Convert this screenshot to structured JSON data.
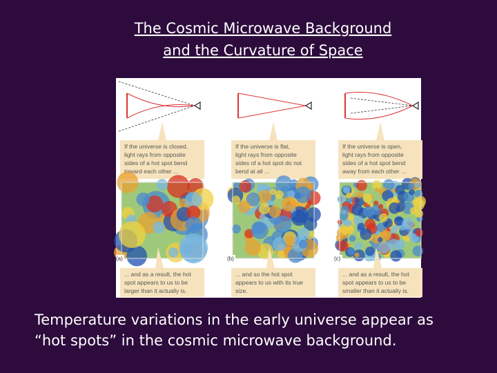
{
  "title": {
    "lines": [
      "The Cosmic Microwave Background",
      "and the Curvature of Space"
    ]
  },
  "figure": {
    "panels": [
      {
        "label": "(a)",
        "top_caption": [
          "If the universe is closed,",
          "light rays from opposite",
          "sides of a hot spot bend",
          "toward each other ..."
        ],
        "bottom_caption": [
          "... and as a result, the hot",
          "spot appears to us to be",
          "larger than it actually is."
        ]
      },
      {
        "label": "(b)",
        "top_caption": [
          "If the universe is flat,",
          "light rays from opposite",
          "sides of a hot spot do not",
          "bend at all ..."
        ],
        "bottom_caption": [
          "... and so the hot spot",
          "appears to us with its true",
          "size."
        ]
      },
      {
        "label": "(c)",
        "top_caption": [
          "If the universe is open,",
          "light rays from opposite",
          "sides of a hot spot bend",
          "away from each other ..."
        ],
        "bottom_caption": [
          "... and as a result, the hot",
          "spot appears to us to be",
          "smaller than it actually is."
        ]
      }
    ]
  },
  "footer": {
    "lines": [
      "Temperature variations in the early universe appear as",
      "“hot spots” in the cosmic microwave background."
    ]
  }
}
